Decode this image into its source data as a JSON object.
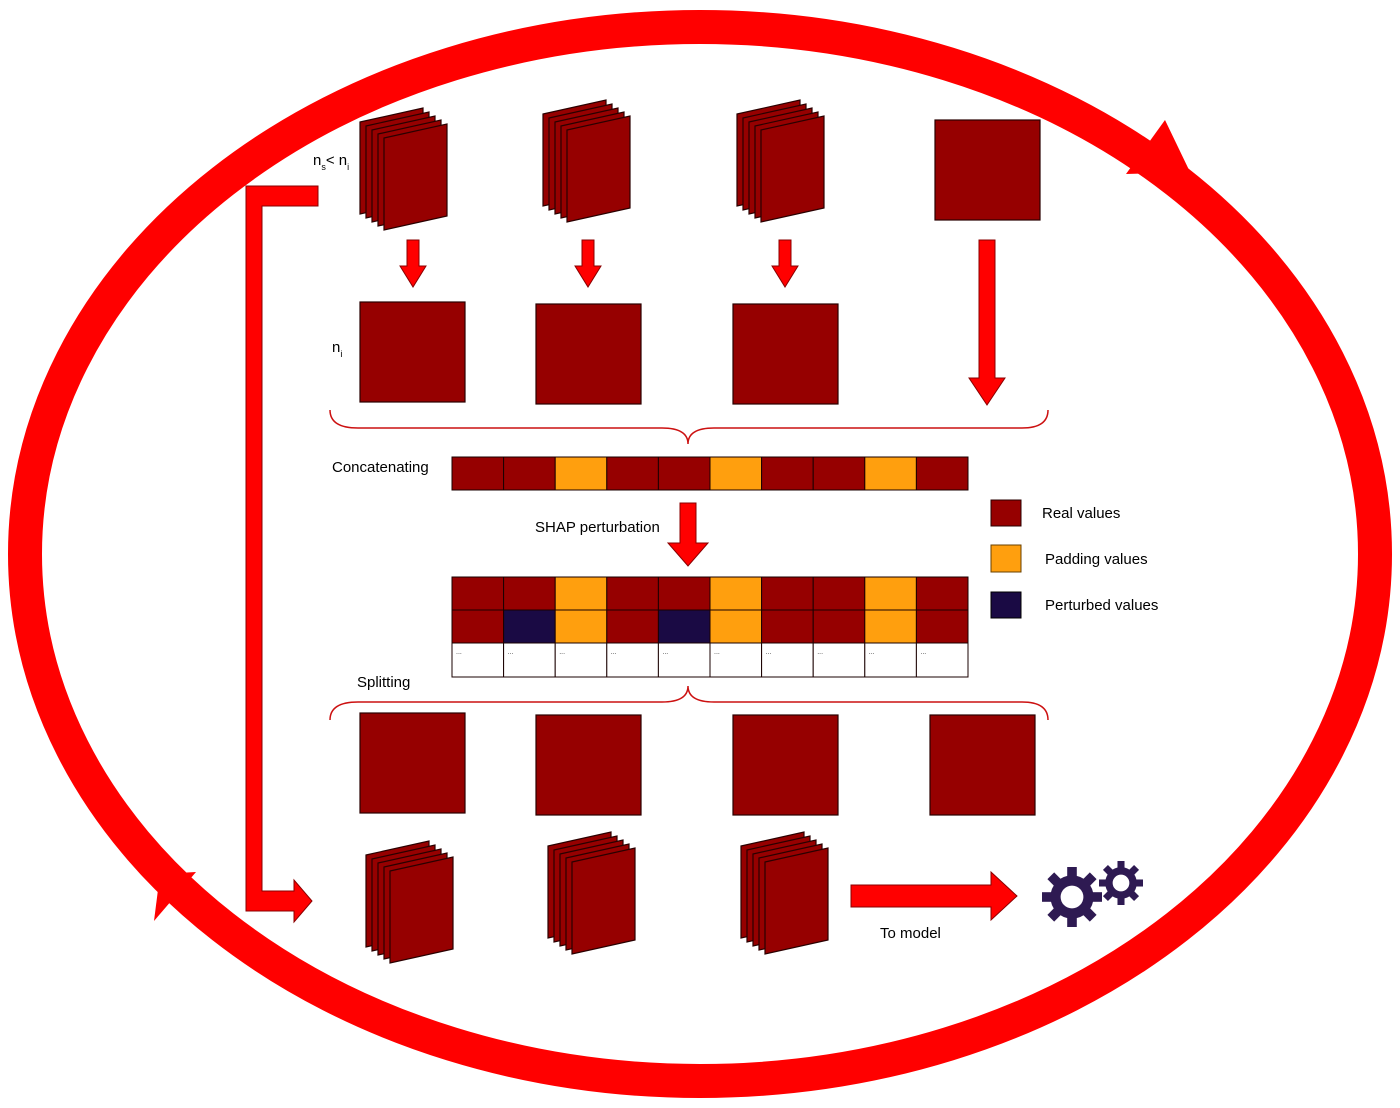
{
  "labels": {
    "concatenating": "Concatenating",
    "shap_perturbation": "SHAP perturbation",
    "splitting": "Splitting",
    "to_model": "To model",
    "ns_base": "n",
    "ns_sub": "s",
    "ns_lt": "< n",
    "ns_rhs_sub": "i",
    "ni_base": "n",
    "ni_sub": "i"
  },
  "legend": [
    {
      "label": "Real values",
      "color": "#960000"
    },
    {
      "label": "Padding values",
      "color": "#ff9f0e"
    },
    {
      "label": "Perturbed values",
      "color": "#1a0a44"
    }
  ],
  "concatenated_row": [
    "real",
    "real",
    "padding",
    "real",
    "real",
    "padding",
    "real",
    "real",
    "padding",
    "real"
  ],
  "perturbed_rows": [
    [
      "real",
      "real",
      "padding",
      "real",
      "real",
      "padding",
      "real",
      "real",
      "padding",
      "real"
    ],
    [
      "real",
      "perturbed",
      "padding",
      "real",
      "perturbed",
      "padding",
      "real",
      "real",
      "padding",
      "real"
    ]
  ],
  "ellipsis_cell": "...",
  "colors": {
    "real": "#960000",
    "padding": "#ff9f0e",
    "perturbed": "#1a0a44",
    "arrow": "#ff0000",
    "gear": "#2e1a52"
  }
}
